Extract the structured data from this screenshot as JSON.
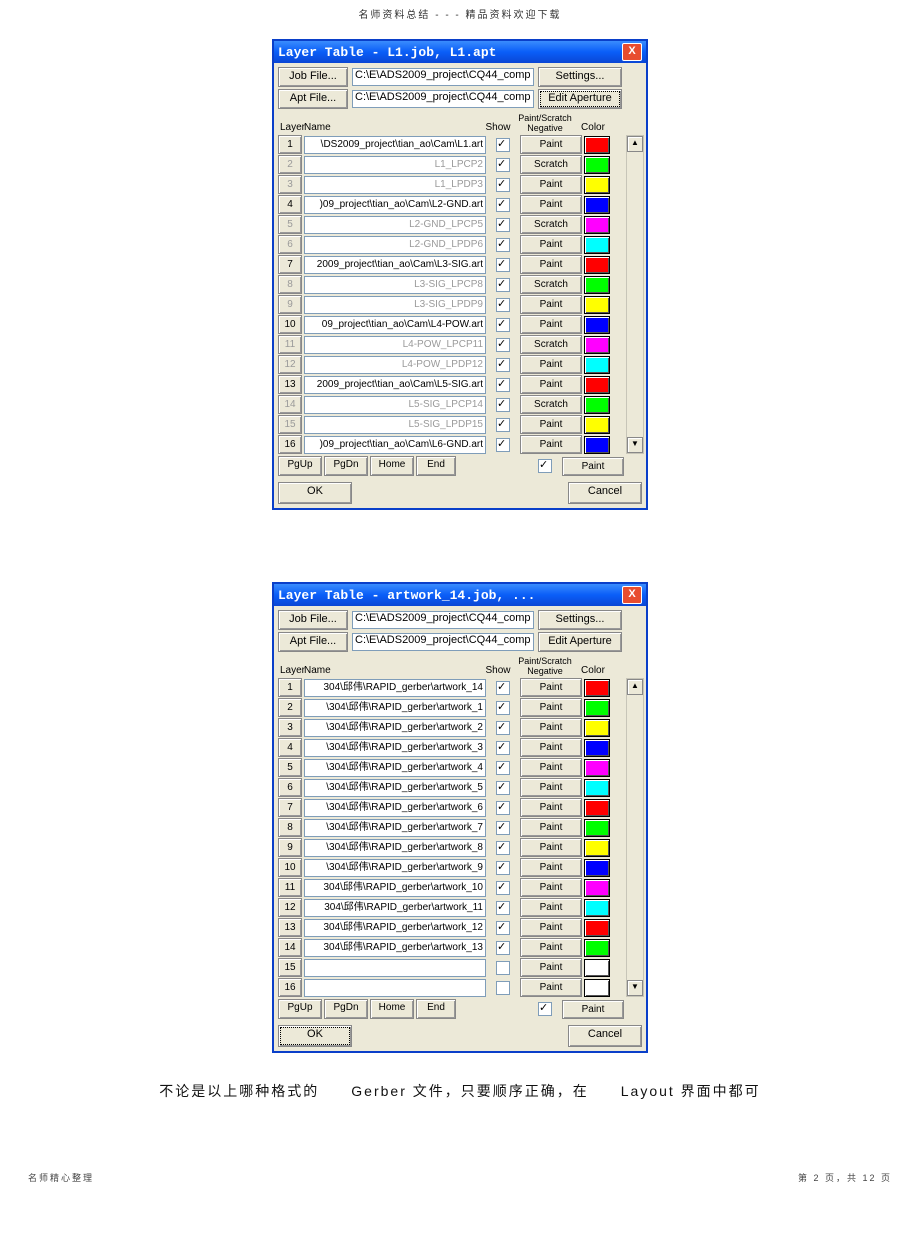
{
  "pageHeader": "名师资料总结  -  -  - 精品资料欢迎下载",
  "footerText": "不论是以上哪种格式的　　Gerber 文件，只要顺序正确，在　　Layout 界面中都可",
  "footLeft": "名师精心整理",
  "footRight": "第 2 页，共 12 页",
  "common": {
    "jobFileBtn": "Job File...",
    "aptFileBtn": "Apt File...",
    "settingsBtn": "Settings...",
    "editApertureBtn": "Edit Aperture",
    "hdrLayer": "Layer",
    "hdrName": "Name",
    "hdrShow": "Show",
    "hdrPS": "Paint/Scratch\nNegative",
    "hdrColor": "Color",
    "pgUp": "PgUp",
    "pgDn": "PgDn",
    "home": "Home",
    "end": "End",
    "ok": "OK",
    "cancel": "Cancel",
    "closeX": "X",
    "paint": "Paint",
    "scratch": "Scratch"
  },
  "dlg1": {
    "title": "Layer Table - L1.job, L1.apt",
    "jobPath": "C:\\E\\ADS2009_project\\CQ44_comp",
    "aptPath": "C:\\E\\ADS2009_project\\CQ44_comp",
    "editApertureDotted": true,
    "summaryPS": "Paint",
    "rows": [
      {
        "n": "1",
        "name": "\\DS2009_project\\tian_ao\\Cam\\L1.art",
        "show": true,
        "ps": "Paint",
        "color": "#ff0000",
        "disabled": false
      },
      {
        "n": "2",
        "name": "L1_LPCP2",
        "show": true,
        "ps": "Scratch",
        "color": "#00ff00",
        "disabled": true
      },
      {
        "n": "3",
        "name": "L1_LPDP3",
        "show": true,
        "ps": "Paint",
        "color": "#ffff00",
        "disabled": true
      },
      {
        "n": "4",
        "name": ")09_project\\tian_ao\\Cam\\L2-GND.art",
        "show": true,
        "ps": "Paint",
        "color": "#0000ff",
        "disabled": false
      },
      {
        "n": "5",
        "name": "L2-GND_LPCP5",
        "show": true,
        "ps": "Scratch",
        "color": "#ff00ff",
        "disabled": true
      },
      {
        "n": "6",
        "name": "L2-GND_LPDP6",
        "show": true,
        "ps": "Paint",
        "color": "#00ffff",
        "disabled": true
      },
      {
        "n": "7",
        "name": "2009_project\\tian_ao\\Cam\\L3-SIG.art",
        "show": true,
        "ps": "Paint",
        "color": "#ff0000",
        "disabled": false
      },
      {
        "n": "8",
        "name": "L3-SIG_LPCP8",
        "show": true,
        "ps": "Scratch",
        "color": "#00ff00",
        "disabled": true
      },
      {
        "n": "9",
        "name": "L3-SIG_LPDP9",
        "show": true,
        "ps": "Paint",
        "color": "#ffff00",
        "disabled": true
      },
      {
        "n": "10",
        "name": "09_project\\tian_ao\\Cam\\L4-POW.art",
        "show": true,
        "ps": "Paint",
        "color": "#0000ff",
        "disabled": false
      },
      {
        "n": "11",
        "name": "L4-POW_LPCP11",
        "show": true,
        "ps": "Scratch",
        "color": "#ff00ff",
        "disabled": true
      },
      {
        "n": "12",
        "name": "L4-POW_LPDP12",
        "show": true,
        "ps": "Paint",
        "color": "#00ffff",
        "disabled": true
      },
      {
        "n": "13",
        "name": "2009_project\\tian_ao\\Cam\\L5-SIG.art",
        "show": true,
        "ps": "Paint",
        "color": "#ff0000",
        "disabled": false
      },
      {
        "n": "14",
        "name": "L5-SIG_LPCP14",
        "show": true,
        "ps": "Scratch",
        "color": "#00ff00",
        "disabled": true
      },
      {
        "n": "15",
        "name": "L5-SIG_LPDP15",
        "show": true,
        "ps": "Paint",
        "color": "#ffff00",
        "disabled": true
      },
      {
        "n": "16",
        "name": ")09_project\\tian_ao\\Cam\\L6-GND.art",
        "show": true,
        "ps": "Paint",
        "color": "#0000ff",
        "disabled": false
      }
    ]
  },
  "dlg2": {
    "title": "Layer Table - artwork_14.job, ...",
    "jobPath": "C:\\E\\ADS2009_project\\CQ44_comp",
    "aptPath": "C:\\E\\ADS2009_project\\CQ44_comp",
    "editApertureDotted": false,
    "okDotted": true,
    "summaryPS": "Paint",
    "rows": [
      {
        "n": "1",
        "name": "304\\邱伟\\RAPID_gerber\\artwork_14",
        "show": true,
        "ps": "Paint",
        "color": "#ff0000",
        "disabled": false
      },
      {
        "n": "2",
        "name": "\\304\\邱伟\\RAPID_gerber\\artwork_1",
        "show": true,
        "ps": "Paint",
        "color": "#00ff00",
        "disabled": false
      },
      {
        "n": "3",
        "name": "\\304\\邱伟\\RAPID_gerber\\artwork_2",
        "show": true,
        "ps": "Paint",
        "color": "#ffff00",
        "disabled": false
      },
      {
        "n": "4",
        "name": "\\304\\邱伟\\RAPID_gerber\\artwork_3",
        "show": true,
        "ps": "Paint",
        "color": "#0000ff",
        "disabled": false
      },
      {
        "n": "5",
        "name": "\\304\\邱伟\\RAPID_gerber\\artwork_4",
        "show": true,
        "ps": "Paint",
        "color": "#ff00ff",
        "disabled": false
      },
      {
        "n": "6",
        "name": "\\304\\邱伟\\RAPID_gerber\\artwork_5",
        "show": true,
        "ps": "Paint",
        "color": "#00ffff",
        "disabled": false
      },
      {
        "n": "7",
        "name": "\\304\\邱伟\\RAPID_gerber\\artwork_6",
        "show": true,
        "ps": "Paint",
        "color": "#ff0000",
        "disabled": false
      },
      {
        "n": "8",
        "name": "\\304\\邱伟\\RAPID_gerber\\artwork_7",
        "show": true,
        "ps": "Paint",
        "color": "#00ff00",
        "disabled": false
      },
      {
        "n": "9",
        "name": "\\304\\邱伟\\RAPID_gerber\\artwork_8",
        "show": true,
        "ps": "Paint",
        "color": "#ffff00",
        "disabled": false
      },
      {
        "n": "10",
        "name": "\\304\\邱伟\\RAPID_gerber\\artwork_9",
        "show": true,
        "ps": "Paint",
        "color": "#0000ff",
        "disabled": false
      },
      {
        "n": "11",
        "name": "304\\邱伟\\RAPID_gerber\\artwork_10",
        "show": true,
        "ps": "Paint",
        "color": "#ff00ff",
        "disabled": false
      },
      {
        "n": "12",
        "name": "304\\邱伟\\RAPID_gerber\\artwork_11",
        "show": true,
        "ps": "Paint",
        "color": "#00ffff",
        "disabled": false
      },
      {
        "n": "13",
        "name": "304\\邱伟\\RAPID_gerber\\artwork_12",
        "show": true,
        "ps": "Paint",
        "color": "#ff0000",
        "disabled": false
      },
      {
        "n": "14",
        "name": "304\\邱伟\\RAPID_gerber\\artwork_13",
        "show": true,
        "ps": "Paint",
        "color": "#00ff00",
        "disabled": false
      },
      {
        "n": "15",
        "name": "",
        "show": false,
        "ps": "Paint",
        "color": "#ffffff",
        "disabled": false
      },
      {
        "n": "16",
        "name": "",
        "show": false,
        "ps": "Paint",
        "color": "#ffffff",
        "disabled": false
      }
    ]
  }
}
